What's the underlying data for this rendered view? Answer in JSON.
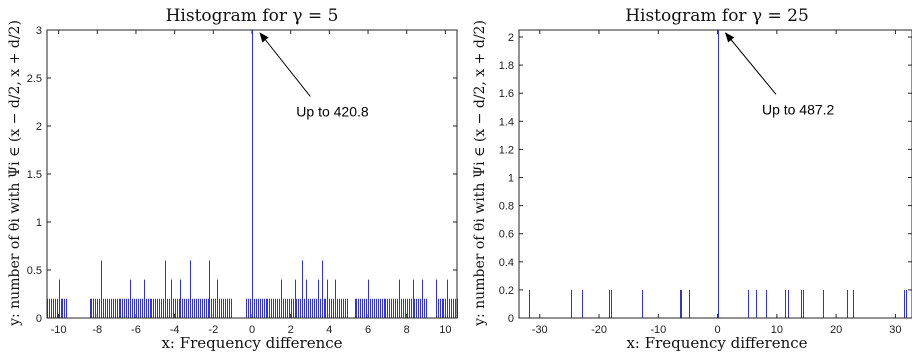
{
  "chart_data": [
    {
      "type": "bar",
      "title": "Histogram for γ = 5",
      "xlabel": "x: Frequency difference",
      "ylabel": "y: number of θi with Ψi ∈ (x − d/2, x + d/2)",
      "xlim": [
        -10.6,
        10.6
      ],
      "ylim": [
        0,
        3
      ],
      "xticks": [
        -10,
        -8,
        -6,
        -4,
        -2,
        0,
        2,
        4,
        6,
        8,
        10
      ],
      "yticks": [
        0,
        0.5,
        1,
        1.5,
        2,
        2.5,
        3
      ],
      "tick_labels_x": [
        "-10",
        "-8",
        "-6",
        "-4",
        "-2",
        "0",
        "2",
        "4",
        "6",
        "8",
        "10"
      ],
      "tick_labels_y": [
        "0",
        "0.5",
        "1",
        "1.5",
        "2",
        "2.5",
        "3"
      ],
      "annotation": {
        "text": "Up to 420.8",
        "x": 0,
        "y": 3,
        "text_x": 2.6,
        "text_y": 2.1
      },
      "bars": [
        {
          "x": -10.5,
          "y": 0.2
        },
        {
          "x": -10.0,
          "y": 0.4
        },
        {
          "x": -9.8,
          "y": 0.2
        },
        {
          "x": -7.8,
          "y": 0.6
        },
        {
          "x": -6.3,
          "y": 0.4
        },
        {
          "x": -5.6,
          "y": 0.4
        },
        {
          "x": -4.5,
          "y": 0.6
        },
        {
          "x": -4.2,
          "y": 0.4
        },
        {
          "x": -3.7,
          "y": 0.4
        },
        {
          "x": -3.2,
          "y": 0.6
        },
        {
          "x": -2.2,
          "y": 0.6
        },
        {
          "x": -1.8,
          "y": 0.4
        },
        {
          "x": -1.3,
          "y": 0.2
        },
        {
          "x": 0.0,
          "y": 3
        },
        {
          "x": 1.5,
          "y": 0.4
        },
        {
          "x": 2.2,
          "y": 0.4
        },
        {
          "x": 2.6,
          "y": 0.6
        },
        {
          "x": 2.8,
          "y": 0.4
        },
        {
          "x": 3.4,
          "y": 0.4
        },
        {
          "x": 3.6,
          "y": 0.6
        },
        {
          "x": 3.9,
          "y": 0.4
        },
        {
          "x": 4.3,
          "y": 0.4
        },
        {
          "x": 6.0,
          "y": 0.4
        },
        {
          "x": 7.6,
          "y": 0.4
        },
        {
          "x": 8.3,
          "y": 0.4
        },
        {
          "x": 8.8,
          "y": 0.4
        },
        {
          "x": 9.5,
          "y": 0.4
        },
        {
          "x": 10.1,
          "y": 0.4
        }
      ],
      "dense_bars": {
        "y": 0.2,
        "x_from": -10.6,
        "x_to": 10.6,
        "step": 0.1,
        "gaps": [
          [
            -9.6,
            -8.5
          ],
          [
            -1.1,
            -0.4
          ],
          [
            4.9,
            5.2
          ],
          [
            9.0,
            9.4
          ]
        ]
      }
    },
    {
      "type": "bar",
      "title": "Histogram for γ = 25",
      "xlabel": "x: Frequency difference",
      "ylabel": "y: number of θi with Ψi ∈ (x − d/2, x + d/2)",
      "xlim": [
        -33.5,
        32.8
      ],
      "ylim": [
        0,
        2.05
      ],
      "xticks": [
        -30,
        -20,
        -10,
        0,
        10,
        20,
        30
      ],
      "yticks": [
        0,
        0.2,
        0.4,
        0.6,
        0.8,
        1,
        1.2,
        1.4,
        1.6,
        1.8,
        2
      ],
      "tick_labels_x": [
        "-30",
        "-20",
        "-10",
        "0",
        "10",
        "20",
        "30"
      ],
      "tick_labels_y": [
        "0",
        "0.2",
        "0.4",
        "0.6",
        "0.8",
        "1",
        "1.2",
        "1.4",
        "1.6",
        "1.8",
        "2"
      ],
      "annotation": {
        "text": "Up to 487.2",
        "x": 0,
        "y": 2.05,
        "text_x": 8.5,
        "text_y": 1.45
      },
      "bars": [
        {
          "x": -31.8,
          "y": 0.2
        },
        {
          "x": -24.8,
          "y": 0.2
        },
        {
          "x": -22.8,
          "y": 0.2
        },
        {
          "x": -18.4,
          "y": 0.2
        },
        {
          "x": -18.0,
          "y": 0.2
        },
        {
          "x": -12.8,
          "y": 0.2
        },
        {
          "x": -6.4,
          "y": 0.2
        },
        {
          "x": -6.1,
          "y": 0.2
        },
        {
          "x": -4.8,
          "y": 0.2
        },
        {
          "x": 0.0,
          "y": 2.05
        },
        {
          "x": 5.2,
          "y": 0.2
        },
        {
          "x": 6.4,
          "y": 0.2
        },
        {
          "x": 8.2,
          "y": 0.2
        },
        {
          "x": 11.4,
          "y": 0.2
        },
        {
          "x": 11.8,
          "y": 0.2
        },
        {
          "x": 14.0,
          "y": 0.2
        },
        {
          "x": 14.4,
          "y": 0.2
        },
        {
          "x": 17.8,
          "y": 0.2
        },
        {
          "x": 21.9,
          "y": 0.2
        },
        {
          "x": 22.8,
          "y": 0.2
        },
        {
          "x": 31.4,
          "y": 0.2
        },
        {
          "x": 31.8,
          "y": 0.2
        }
      ]
    }
  ]
}
